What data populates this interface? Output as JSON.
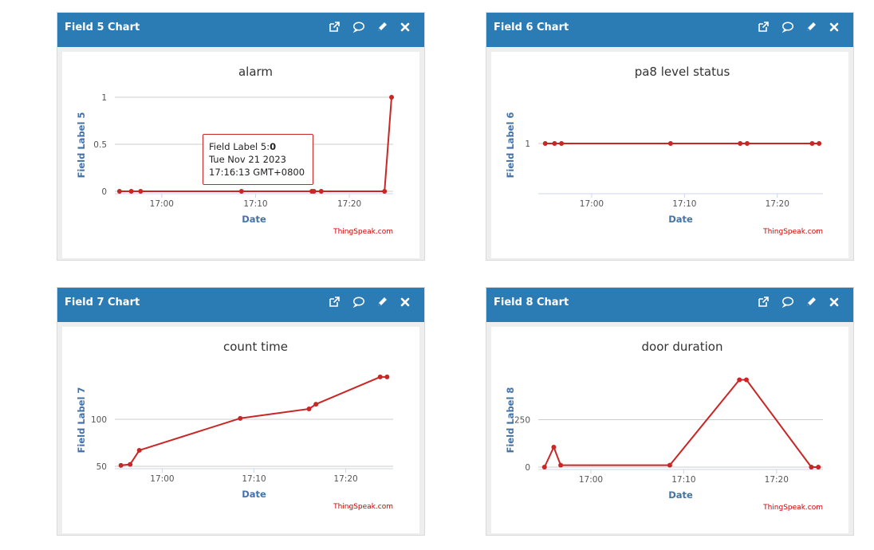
{
  "colors": {
    "header": "#2b7bb5",
    "series": "#c92626",
    "title": "#333333",
    "axis_label": "#4572a7",
    "credit": "#cc0000",
    "grid": "#cccccc"
  },
  "icons": [
    "external-link-icon",
    "comment-icon",
    "pencil-icon",
    "close-icon"
  ],
  "panels": [
    {
      "title": "Field 5 Chart",
      "tooltip": {
        "label": "Field Label 5:",
        "value": "0",
        "date": "Tue Nov 21 2023",
        "time": "17:16:13 GMT+0800"
      }
    },
    {
      "title": "Field 6 Chart"
    },
    {
      "title": "Field 7 Chart"
    },
    {
      "title": "Field 8 Chart"
    }
  ],
  "chart_data": [
    {
      "type": "line",
      "title": "alarm",
      "xlabel": "Date",
      "ylabel": "Field Label 5",
      "credit": "ThingSpeak.com",
      "x": [
        "16:55:30",
        "16:56:45",
        "16:57:45",
        "17:08:30",
        "17:16:00",
        "17:16:13",
        "17:17:00",
        "17:23:45",
        "17:24:30"
      ],
      "y": [
        0,
        0,
        0,
        0,
        0,
        0,
        0,
        0,
        1
      ],
      "x_ticks": [
        "17:00",
        "17:10",
        "17:20"
      ],
      "y_ticks": [
        "0",
        "0.5",
        "1"
      ],
      "ylim": [
        0,
        1
      ],
      "grid": true
    },
    {
      "type": "line",
      "title": "pa8 level status",
      "xlabel": "Date",
      "ylabel": "Field Label 6",
      "credit": "ThingSpeak.com",
      "x": [
        "16:55:00",
        "16:56:00",
        "16:56:45",
        "17:08:30",
        "17:16:00",
        "17:16:45",
        "17:23:45",
        "17:24:30"
      ],
      "y": [
        1,
        1,
        1,
        1,
        1,
        1,
        1,
        1
      ],
      "x_ticks": [
        "17:00",
        "17:10",
        "17:20"
      ],
      "y_ticks": [
        "1"
      ],
      "grid": true
    },
    {
      "type": "line",
      "title": "count time",
      "xlabel": "Date",
      "ylabel": "Field Label 7",
      "credit": "ThingSpeak.com",
      "x": [
        "16:55:30",
        "16:56:30",
        "16:57:30",
        "17:08:30",
        "17:16:00",
        "17:16:45",
        "17:23:45",
        "17:24:30"
      ],
      "y": [
        51,
        52,
        67,
        101,
        111,
        116,
        145,
        145
      ],
      "x_ticks": [
        "17:00",
        "17:10",
        "17:20"
      ],
      "y_ticks": [
        "50",
        "100"
      ],
      "grid": true
    },
    {
      "type": "line",
      "title": "door duration",
      "xlabel": "Date",
      "ylabel": "Field Label 8",
      "credit": "ThingSpeak.com",
      "x": [
        "16:55:00",
        "16:56:00",
        "16:56:45",
        "17:08:30",
        "17:16:00",
        "17:16:45",
        "17:23:45",
        "17:24:30"
      ],
      "y": [
        0,
        105,
        10,
        10,
        460,
        460,
        0,
        0
      ],
      "x_ticks": [
        "17:00",
        "17:10",
        "17:20"
      ],
      "y_ticks": [
        "0",
        "250"
      ],
      "grid": true
    }
  ]
}
